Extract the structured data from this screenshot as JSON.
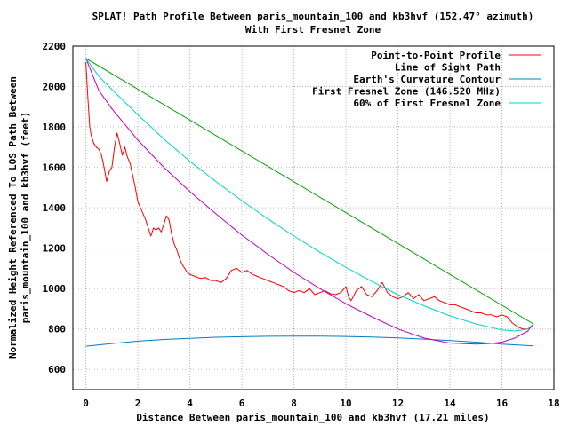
{
  "chart_data": {
    "type": "line",
    "title": "SPLAT! Path Profile Between paris_mountain_100 and kb3hvf (152.47° azimuth)",
    "subtitle": "With First Fresnel Zone",
    "xlabel": "Distance Between paris_mountain_100 and kb3hvf (17.21 miles)",
    "ylabel": [
      "Normalized Height Referenced To LOS Path Between",
      "paris_mountain_100 and kb3hvf (feet)"
    ],
    "xlim": [
      -0.5,
      18
    ],
    "ylim": [
      500,
      2200
    ],
    "xticks": [
      0,
      2,
      4,
      6,
      8,
      10,
      12,
      14,
      16,
      18
    ],
    "yticks": [
      600,
      800,
      1000,
      1200,
      1400,
      1600,
      1800,
      2000,
      2200
    ],
    "grid": true,
    "legend_position": "top-right",
    "series": [
      {
        "name": "Point-to-Point Profile",
        "color": "#ff0000",
        "x": [
          0,
          0.05,
          0.1,
          0.15,
          0.2,
          0.3,
          0.4,
          0.5,
          0.6,
          0.7,
          0.8,
          0.9,
          1.0,
          1.1,
          1.2,
          1.3,
          1.4,
          1.5,
          1.6,
          1.7,
          1.8,
          1.9,
          2.0,
          2.1,
          2.2,
          2.3,
          2.4,
          2.5,
          2.6,
          2.7,
          2.8,
          2.9,
          3.0,
          3.1,
          3.2,
          3.3,
          3.4,
          3.5,
          3.6,
          3.7,
          3.8,
          3.9,
          4.0,
          4.2,
          4.4,
          4.6,
          4.8,
          5.0,
          5.2,
          5.4,
          5.6,
          5.8,
          6.0,
          6.2,
          6.4,
          6.6,
          6.8,
          7.0,
          7.2,
          7.4,
          7.6,
          7.8,
          8.0,
          8.2,
          8.4,
          8.6,
          8.8,
          9.0,
          9.2,
          9.4,
          9.6,
          9.8,
          10.0,
          10.1,
          10.2,
          10.4,
          10.6,
          10.8,
          11.0,
          11.2,
          11.4,
          11.6,
          11.8,
          12.0,
          12.2,
          12.4,
          12.6,
          12.8,
          13.0,
          13.2,
          13.4,
          13.6,
          13.8,
          14.0,
          14.2,
          14.4,
          14.6,
          14.8,
          15.0,
          15.2,
          15.4,
          15.6,
          15.8,
          16.0,
          16.2,
          16.4,
          16.6,
          16.8,
          17.0,
          17.21
        ],
        "y": [
          2120,
          2000,
          1900,
          1800,
          1760,
          1720,
          1700,
          1690,
          1660,
          1600,
          1530,
          1580,
          1600,
          1700,
          1770,
          1720,
          1660,
          1700,
          1650,
          1620,
          1560,
          1500,
          1430,
          1400,
          1370,
          1340,
          1300,
          1260,
          1300,
          1290,
          1300,
          1280,
          1320,
          1360,
          1340,
          1270,
          1220,
          1190,
          1150,
          1120,
          1100,
          1080,
          1070,
          1060,
          1050,
          1055,
          1040,
          1040,
          1030,
          1050,
          1090,
          1100,
          1080,
          1090,
          1070,
          1060,
          1050,
          1040,
          1030,
          1020,
          1010,
          990,
          980,
          990,
          980,
          1000,
          970,
          980,
          990,
          975,
          970,
          980,
          1010,
          960,
          940,
          990,
          1010,
          970,
          960,
          990,
          1030,
          980,
          960,
          950,
          960,
          980,
          950,
          970,
          940,
          950,
          960,
          940,
          930,
          920,
          920,
          910,
          900,
          890,
          880,
          880,
          870,
          870,
          860,
          870,
          860,
          830,
          810,
          800,
          800,
          815
        ]
      },
      {
        "name": "Line of Sight Path",
        "color": "#00a000",
        "x": [
          0,
          17.21
        ],
        "y": [
          2140,
          825
        ]
      },
      {
        "name": "Earth's Curvature Contour",
        "color": "#0080c0",
        "x": [
          0,
          1,
          2,
          3,
          4,
          5,
          6,
          7,
          8,
          9,
          10,
          11,
          12,
          13,
          14,
          15,
          16,
          17,
          17.21
        ],
        "y": [
          715,
          728,
          740,
          748,
          754,
          759,
          762,
          764,
          765,
          765,
          763,
          760,
          756,
          750,
          743,
          735,
          725,
          718,
          716
        ]
      },
      {
        "name": "First Fresnel Zone (146.520 MHz)",
        "color": "#c000c0",
        "x": [
          0,
          0.5,
          1,
          2,
          3,
          4,
          5,
          6,
          7,
          8,
          9,
          10,
          11,
          12,
          13,
          14,
          15,
          15.5,
          16,
          16.5,
          17,
          17.21
        ],
        "y": [
          2140,
          1980,
          1890,
          1735,
          1600,
          1480,
          1370,
          1265,
          1170,
          1080,
          1000,
          925,
          860,
          800,
          755,
          730,
          725,
          728,
          735,
          755,
          790,
          825
        ]
      },
      {
        "name": "60% of First Fresnel Zone",
        "color": "#00d0d0",
        "x": [
          0,
          0.5,
          1,
          2,
          3,
          4,
          5,
          6,
          7,
          8,
          9,
          10,
          11,
          12,
          13,
          14,
          15,
          16,
          16.5,
          17,
          17.21
        ],
        "y": [
          2140,
          2050,
          1985,
          1860,
          1740,
          1630,
          1530,
          1435,
          1345,
          1260,
          1180,
          1105,
          1035,
          970,
          915,
          865,
          825,
          795,
          790,
          800,
          825
        ]
      }
    ]
  },
  "legend": [
    {
      "label": "Point-to-Point Profile",
      "color": "#ff0000"
    },
    {
      "label": "Line of Sight Path",
      "color": "#00a000"
    },
    {
      "label": "Earth's Curvature Contour",
      "color": "#0080c0"
    },
    {
      "label": "First Fresnel Zone (146.520 MHz)",
      "color": "#c000c0"
    },
    {
      "label": "60% of First Fresnel Zone",
      "color": "#00d0d0"
    }
  ]
}
